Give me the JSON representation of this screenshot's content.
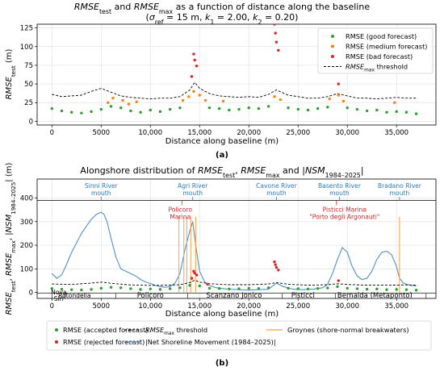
{
  "chart_data": [
    {
      "type": "scatter",
      "panel_label": "(a)",
      "title": "RMSE_test and RMSE_max as a function of distance along the baseline",
      "subtitle": "(σ_ref = 15 m, k_1 = 2.00, k_2 = 0.20)",
      "xlabel": "Distance along baseline (m)",
      "ylabel": "RMSE_test (m)",
      "xlim": [
        -1500,
        39000
      ],
      "ylim": [
        -5,
        130
      ],
      "xticks": [
        0,
        5000,
        10000,
        15000,
        20000,
        25000,
        30000,
        35000
      ],
      "xtick_labels": [
        "0",
        "5000",
        "10,000",
        "15,000",
        "20,000",
        "25,000",
        "30,000",
        "35,000"
      ],
      "yticks": [
        0,
        25,
        50,
        75,
        100,
        125
      ],
      "grid": true,
      "legend_position": "top-right",
      "legend": [
        "RMSE (good forecast)",
        "RMSE (medium forecast)",
        "RMSE (bad forecast)",
        "RMSE_max threshold"
      ],
      "series": [
        {
          "name": "RMSE (good forecast)",
          "kind": "scatter",
          "color": "#2ca02c",
          "x": [
            0,
            1000,
            2000,
            3000,
            4000,
            5000,
            6000,
            7000,
            8000,
            9000,
            10000,
            11000,
            12000,
            13000,
            16000,
            17000,
            18000,
            19000,
            20000,
            21000,
            22000,
            24000,
            25000,
            26000,
            27000,
            28000,
            30000,
            31000,
            32000,
            33000,
            34000,
            35000,
            36000,
            37000
          ],
          "y": [
            17,
            14,
            12,
            11,
            13,
            16,
            20,
            18,
            14,
            12,
            15,
            13,
            16,
            18,
            18,
            17,
            15,
            16,
            18,
            17,
            20,
            18,
            16,
            15,
            17,
            19,
            18,
            16,
            14,
            15,
            12,
            13,
            12,
            10
          ]
        },
        {
          "name": "RMSE (medium forecast)",
          "kind": "scatter",
          "color": "#ff7f0e",
          "x": [
            5700,
            6200,
            7200,
            7800,
            8600,
            13300,
            13900,
            14400,
            15000,
            15600,
            17400,
            22600,
            23200,
            28200,
            29100,
            29600,
            34800
          ],
          "y": [
            25,
            31,
            28,
            23,
            26,
            28,
            33,
            40,
            35,
            28,
            27,
            33,
            29,
            30,
            35,
            27,
            25
          ]
        },
        {
          "name": "RMSE (bad forecast)",
          "kind": "scatter",
          "color": "#d62728",
          "x": [
            14200,
            14400,
            14500,
            14700,
            22600,
            22700,
            22800,
            23000,
            29100
          ],
          "y": [
            60,
            90,
            82,
            74,
            130,
            118,
            106,
            95,
            50
          ]
        },
        {
          "name": "RMSE_max threshold",
          "kind": "line",
          "color": "#000000",
          "dash": true,
          "x": [
            0,
            1000,
            2000,
            3000,
            4000,
            5000,
            6000,
            7000,
            8000,
            9000,
            10000,
            11000,
            12000,
            13000,
            14000,
            14500,
            15000,
            16000,
            17000,
            18000,
            19000,
            20000,
            21000,
            22000,
            22800,
            24000,
            25000,
            26000,
            27000,
            28000,
            29000,
            30000,
            31000,
            32000,
            33000,
            34000,
            35000,
            36000,
            37000
          ],
          "y": [
            36,
            33,
            34,
            35,
            40,
            44,
            39,
            34,
            32,
            31,
            30,
            31,
            31,
            33,
            42,
            52,
            44,
            37,
            34,
            33,
            32,
            33,
            32,
            36,
            42,
            35,
            33,
            31,
            31,
            33,
            37,
            34,
            31,
            31,
            30,
            31,
            32,
            31,
            31
          ]
        }
      ]
    },
    {
      "type": "line",
      "panel_label": "(b)",
      "title": "Alongshore distribution of RMSE_test, RMSE_max and |NSM_1984–2025|",
      "xlabel": "Distance along baseline (m)",
      "ylabel": "RMSE_test, RMSE_max, |NSM_1984–2025| (m)",
      "xlim": [
        -1500,
        39000
      ],
      "ylim": [
        -25,
        480
      ],
      "xticks": [
        0,
        5000,
        10000,
        15000,
        20000,
        25000,
        30000,
        35000
      ],
      "xtick_labels": [
        "0",
        "5000",
        "10,000",
        "15,000",
        "20,000",
        "25,000",
        "30,000",
        "35,000"
      ],
      "yticks": [
        0,
        100,
        200,
        300,
        400
      ],
      "grid": true,
      "legend_position": "bottom",
      "legend": [
        "RMSE (accepted forecast)",
        "RMSE_max threshold",
        "Groynes (shore-normal breakwaters)",
        "RMSE (rejected forecast)",
        "|Net Shoreline Movement (1984–2025)|"
      ],
      "rivers": [
        {
          "name": "Sinni River mouth",
          "x": 5000
        },
        {
          "name": "Agri River mouth",
          "x": 14300
        },
        {
          "name": "Cavone River mouth",
          "x": 22800
        },
        {
          "name": "Basento River mouth",
          "x": 29200
        },
        {
          "name": "Bradano River mouth",
          "x": 35300
        }
      ],
      "marinas": [
        {
          "name": "Policoro Marina",
          "x": 13200
        },
        {
          "name": "Pisticci Marina \"Porto degli Argonauti\"",
          "x": 28900
        }
      ],
      "municipalities": [
        {
          "name": "Nova Siri",
          "x": 700
        },
        {
          "name": "Rotondella",
          "x": 2300
        },
        {
          "name": "Policoro",
          "x": 10000
        },
        {
          "name": "Scanzano Jonico",
          "x": 18500
        },
        {
          "name": "Pisticci",
          "x": 25500
        },
        {
          "name": "Bernalda (Metaponto)",
          "x": 32800
        }
      ],
      "municipal_boundaries": [
        0,
        1300,
        6500,
        13800,
        23400,
        28800,
        38000
      ],
      "series": [
        {
          "name": "|Net Shoreline Movement (1984–2025)|",
          "kind": "line",
          "color": "#4f8fc7",
          "x": [
            0,
            500,
            1000,
            1500,
            2000,
            2500,
            3000,
            3500,
            4000,
            4500,
            5000,
            5300,
            5600,
            6000,
            6500,
            7000,
            7500,
            8000,
            8500,
            9000,
            9500,
            10000,
            10500,
            11000,
            11500,
            12000,
            12500,
            13000,
            13500,
            14000,
            14300,
            14600,
            15000,
            15500,
            16000,
            16500,
            17000,
            18000,
            19000,
            20000,
            21000,
            22000,
            22800,
            23500,
            24500,
            25500,
            26500,
            27500,
            28000,
            28500,
            29000,
            29500,
            30000,
            30500,
            31000,
            31500,
            32000,
            32500,
            33000,
            33500,
            34000,
            34500,
            35000,
            35300,
            35700,
            36000,
            36500,
            37000
          ],
          "y": [
            80,
            60,
            75,
            120,
            170,
            210,
            250,
            280,
            310,
            330,
            340,
            330,
            300,
            230,
            150,
            100,
            90,
            80,
            70,
            55,
            45,
            38,
            30,
            25,
            22,
            25,
            40,
            80,
            180,
            260,
            300,
            200,
            90,
            45,
            30,
            22,
            18,
            14,
            12,
            10,
            12,
            14,
            40,
            25,
            14,
            12,
            14,
            20,
            35,
            80,
            140,
            190,
            170,
            110,
            70,
            55,
            60,
            90,
            140,
            170,
            175,
            160,
            110,
            60,
            40,
            35,
            30,
            28
          ]
        },
        {
          "name": "RMSE_max threshold",
          "kind": "line",
          "color": "#000000",
          "dash": true,
          "x": [
            0,
            2000,
            4000,
            5000,
            6000,
            8000,
            10000,
            12000,
            13000,
            14000,
            14500,
            15000,
            16000,
            18000,
            20000,
            22000,
            22800,
            24000,
            26000,
            28000,
            29000,
            30000,
            32000,
            34000,
            36000,
            37000
          ],
          "y": [
            36,
            34,
            40,
            44,
            39,
            32,
            30,
            31,
            33,
            42,
            52,
            44,
            37,
            33,
            33,
            36,
            42,
            35,
            31,
            33,
            37,
            34,
            31,
            31,
            32,
            31
          ]
        },
        {
          "name": "RMSE (accepted forecast)",
          "kind": "scatter",
          "color": "#2ca02c",
          "x": [
            0,
            1000,
            2000,
            3000,
            4000,
            5000,
            6000,
            7000,
            8000,
            9000,
            10000,
            11000,
            12000,
            13000,
            14000,
            15000,
            16000,
            17000,
            18000,
            19000,
            20000,
            21000,
            22000,
            24000,
            25000,
            26000,
            27000,
            28000,
            29000,
            30000,
            31000,
            32000,
            33000,
            34000,
            35000,
            36000,
            37000
          ],
          "y": [
            17,
            14,
            12,
            11,
            13,
            18,
            22,
            20,
            16,
            13,
            15,
            13,
            16,
            20,
            30,
            28,
            18,
            17,
            15,
            16,
            18,
            17,
            20,
            18,
            16,
            15,
            17,
            19,
            25,
            18,
            16,
            14,
            15,
            12,
            13,
            12,
            10
          ]
        },
        {
          "name": "RMSE (rejected forecast)",
          "kind": "scatter",
          "color": "#d62728",
          "x": [
            14200,
            14400,
            14500,
            14700,
            15800,
            22600,
            22700,
            22800,
            23000,
            29100
          ],
          "y": [
            60,
            90,
            82,
            74,
            35,
            130,
            118,
            106,
            95,
            50
          ]
        },
        {
          "name": "Groynes (shore-normal breakwaters)",
          "kind": "vlines",
          "color": "#ff9f40",
          "x": [
            12900,
            13400,
            13700,
            14100,
            14600,
            35300
          ],
          "y": [
            320,
            320,
            320,
            320,
            320,
            320
          ]
        }
      ]
    }
  ]
}
